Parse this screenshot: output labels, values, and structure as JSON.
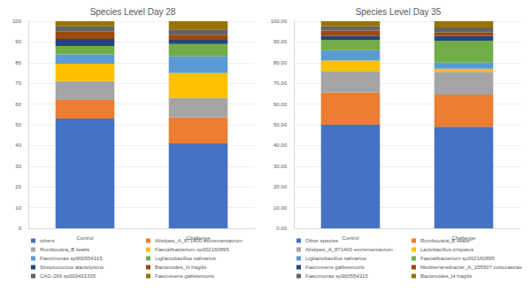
{
  "chart_data": [
    {
      "type": "bar",
      "stacked": true,
      "grid": true,
      "legend": "bottom",
      "title": "Species Level Day 28",
      "categories": [
        "Control",
        "Challenge"
      ],
      "ylim": [
        0,
        100
      ],
      "yticks": [
        0,
        10,
        20,
        30,
        40,
        50,
        60,
        70,
        80,
        90,
        100
      ],
      "series": [
        {
          "name": "others",
          "color": "#4472c4",
          "values": [
            53,
            41
          ]
        },
        {
          "name": "Alistipes_A_871400 excrementavium",
          "color": "#ed7d31",
          "values": [
            9,
            12.5
          ]
        },
        {
          "name": "Romboutsia_B ilealis",
          "color": "#a5a5a5",
          "values": [
            9,
            9.5
          ]
        },
        {
          "name": "Faecalibacterium sp002160895",
          "color": "#ffc000",
          "values": [
            8.5,
            12
          ]
        },
        {
          "name": "Faecimonas sp900554315",
          "color": "#5b9bd5",
          "values": [
            4.5,
            8
          ]
        },
        {
          "name": "Ligilactobacillus salivarius",
          "color": "#70ad47",
          "values": [
            4,
            6
          ]
        },
        {
          "name": "Streptococcus alactolyticus",
          "color": "#264478",
          "values": [
            3.5,
            2
          ]
        },
        {
          "name": "Bacteroides_H fragilis",
          "color": "#9e480e",
          "values": [
            3.5,
            2.5
          ]
        },
        {
          "name": "CAG-269 sp000431335",
          "color": "#636363",
          "values": [
            2.5,
            2.5
          ]
        },
        {
          "name": "Faecivivens gallistercoris",
          "color": "#997300",
          "values": [
            2.5,
            4
          ]
        }
      ]
    },
    {
      "type": "bar",
      "stacked": true,
      "grid": true,
      "legend": "bottom",
      "title": "Species Level Day 35",
      "categories": [
        "Control",
        "Challenge"
      ],
      "ylim": [
        0,
        100
      ],
      "yticks": [
        {
          "value": 0,
          "label": "0.00"
        },
        {
          "value": 10,
          "label": "10.00"
        },
        {
          "value": 20,
          "label": "20.00"
        },
        {
          "value": 30,
          "label": "30.00"
        },
        {
          "value": 40,
          "label": "40.00"
        },
        {
          "value": 50,
          "label": "50.00"
        },
        {
          "value": 60,
          "label": "60.00"
        },
        {
          "value": 70,
          "label": "70.00"
        },
        {
          "value": 80,
          "label": "80.00"
        },
        {
          "value": 90,
          "label": "90.00"
        },
        {
          "value": 100,
          "label": "100.00"
        }
      ],
      "series": [
        {
          "name": "Other species",
          "color": "#4472c4",
          "values": [
            50,
            49
          ]
        },
        {
          "name": "Romboutsia_B ilealis",
          "color": "#ed7d31",
          "values": [
            15.5,
            15.5
          ]
        },
        {
          "name": "Alistipes_A_871400 excrementavium",
          "color": "#a5a5a5",
          "values": [
            10.5,
            11
          ]
        },
        {
          "name": "Lactobacillus crispatus",
          "color": "#ffc000",
          "values": [
            5,
            1.5
          ]
        },
        {
          "name": "Ligilactobacillus salivarius",
          "color": "#5b9bd5",
          "values": [
            5,
            3
          ]
        },
        {
          "name": "Faecalibacterium sp002160895",
          "color": "#70ad47",
          "values": [
            5,
            10.5
          ]
        },
        {
          "name": "Faecivivens gallistercoris",
          "color": "#264478",
          "values": [
            2,
            2.5
          ]
        },
        {
          "name": "Mediterraneibacter_A_155507 cottocaecae",
          "color": "#9e480e",
          "values": [
            2.5,
            1.5
          ]
        },
        {
          "name": "Faecimonas sp900554315",
          "color": "#636363",
          "values": [
            2,
            2.5
          ]
        },
        {
          "name": "Bacteroides_H fragilis",
          "color": "#997300",
          "values": [
            2.5,
            3
          ]
        }
      ]
    }
  ]
}
